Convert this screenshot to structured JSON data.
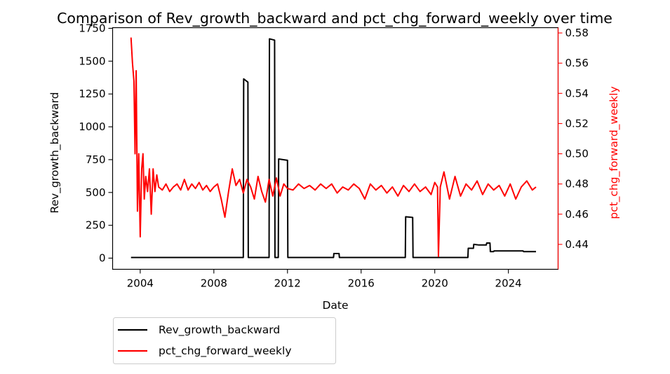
{
  "chart_data": {
    "type": "line",
    "title": "Comparison of Rev_growth_backward and pct_chg_forward_weekly over time",
    "xlabel": "Date",
    "ylabel_left": "Rev_growth_backward",
    "ylabel_right": "pct_chg_forward_weekly",
    "xlim": [
      2002.5,
      2026.7
    ],
    "ylim_left": [
      -85,
      1755
    ],
    "ylim_right": [
      0.4235,
      0.5835
    ],
    "x_ticks": [
      2004,
      2008,
      2012,
      2016,
      2020,
      2024
    ],
    "x_tick_labels": [
      "2004",
      "2008",
      "2012",
      "2016",
      "2020",
      "2024"
    ],
    "y_ticks_left": [
      0,
      250,
      500,
      750,
      1000,
      1250,
      1500,
      1750
    ],
    "y_tick_labels_left": [
      "0",
      "250",
      "500",
      "750",
      "1000",
      "1250",
      "1500",
      "1750"
    ],
    "y_ticks_right": [
      0.44,
      0.46,
      0.48,
      0.5,
      0.52,
      0.54,
      0.56,
      0.58
    ],
    "y_tick_labels_right": [
      "0.44",
      "0.46",
      "0.48",
      "0.50",
      "0.52",
      "0.54",
      "0.56",
      "0.58"
    ],
    "legend_position": "below-left",
    "grid": false,
    "series": [
      {
        "name": "Rev_growth_backward",
        "axis": "left",
        "color": "#000000",
        "x": [
          2003.5,
          2009.6,
          2009.62,
          2009.85,
          2009.87,
          2011.0,
          2011.02,
          2011.3,
          2011.32,
          2011.5,
          2011.52,
          2012.0,
          2012.02,
          2014.5,
          2014.52,
          2014.8,
          2014.82,
          2018.4,
          2018.42,
          2018.8,
          2018.82,
          2021.8,
          2021.82,
          2022.1,
          2022.12,
          2022.4,
          2022.42,
          2022.8,
          2022.82,
          2023.0,
          2023.02,
          2023.2,
          2023.22,
          2024.8,
          2024.82,
          2025.5
        ],
        "y": [
          5,
          5,
          1365,
          1340,
          5,
          5,
          1670,
          1660,
          5,
          5,
          755,
          745,
          5,
          5,
          35,
          35,
          5,
          5,
          315,
          310,
          5,
          5,
          75,
          75,
          105,
          100,
          100,
          100,
          115,
          115,
          50,
          50,
          55,
          55,
          50,
          50
        ]
      },
      {
        "name": "pct_chg_forward_weekly",
        "axis": "right",
        "color": "#ff0000",
        "x": [
          2003.5,
          2003.58,
          2003.66,
          2003.72,
          2003.78,
          2003.85,
          2003.92,
          2004.0,
          2004.08,
          2004.15,
          2004.22,
          2004.3,
          2004.4,
          2004.5,
          2004.6,
          2004.7,
          2004.8,
          2004.9,
          2005.0,
          2005.2,
          2005.4,
          2005.6,
          2005.8,
          2006.0,
          2006.2,
          2006.4,
          2006.6,
          2006.8,
          2007.0,
          2007.2,
          2007.4,
          2007.6,
          2007.8,
          2008.0,
          2008.2,
          2008.4,
          2008.6,
          2008.8,
          2009.0,
          2009.2,
          2009.4,
          2009.6,
          2009.8,
          2010.0,
          2010.2,
          2010.4,
          2010.6,
          2010.8,
          2011.0,
          2011.2,
          2011.4,
          2011.6,
          2011.8,
          2012.0,
          2012.3,
          2012.6,
          2012.9,
          2013.2,
          2013.5,
          2013.8,
          2014.1,
          2014.4,
          2014.7,
          2015.0,
          2015.3,
          2015.6,
          2015.9,
          2016.2,
          2016.5,
          2016.8,
          2017.1,
          2017.4,
          2017.7,
          2018.0,
          2018.3,
          2018.6,
          2018.9,
          2019.2,
          2019.5,
          2019.8,
          2020.0,
          2020.15,
          2020.2,
          2020.3,
          2020.5,
          2020.8,
          2021.1,
          2021.4,
          2021.7,
          2022.0,
          2022.3,
          2022.6,
          2022.9,
          2023.2,
          2023.5,
          2023.8,
          2024.1,
          2024.4,
          2024.7,
          2025.0,
          2025.3,
          2025.5
        ],
        "y": [
          0.577,
          0.56,
          0.548,
          0.5,
          0.555,
          0.462,
          0.5,
          0.445,
          0.49,
          0.5,
          0.47,
          0.485,
          0.475,
          0.49,
          0.46,
          0.49,
          0.475,
          0.486,
          0.478,
          0.476,
          0.48,
          0.475,
          0.478,
          0.48,
          0.476,
          0.483,
          0.476,
          0.48,
          0.477,
          0.481,
          0.476,
          0.479,
          0.475,
          0.478,
          0.48,
          0.47,
          0.458,
          0.475,
          0.49,
          0.479,
          0.483,
          0.474,
          0.483,
          0.478,
          0.47,
          0.485,
          0.475,
          0.468,
          0.483,
          0.472,
          0.484,
          0.472,
          0.48,
          0.477,
          0.476,
          0.48,
          0.477,
          0.479,
          0.476,
          0.48,
          0.477,
          0.48,
          0.474,
          0.478,
          0.476,
          0.48,
          0.477,
          0.47,
          0.48,
          0.476,
          0.479,
          0.474,
          0.478,
          0.472,
          0.479,
          0.475,
          0.48,
          0.475,
          0.478,
          0.473,
          0.481,
          0.478,
          0.432,
          0.478,
          0.488,
          0.47,
          0.485,
          0.472,
          0.48,
          0.476,
          0.482,
          0.473,
          0.48,
          0.476,
          0.479,
          0.472,
          0.48,
          0.47,
          0.478,
          0.482,
          0.476,
          0.478
        ]
      }
    ]
  }
}
